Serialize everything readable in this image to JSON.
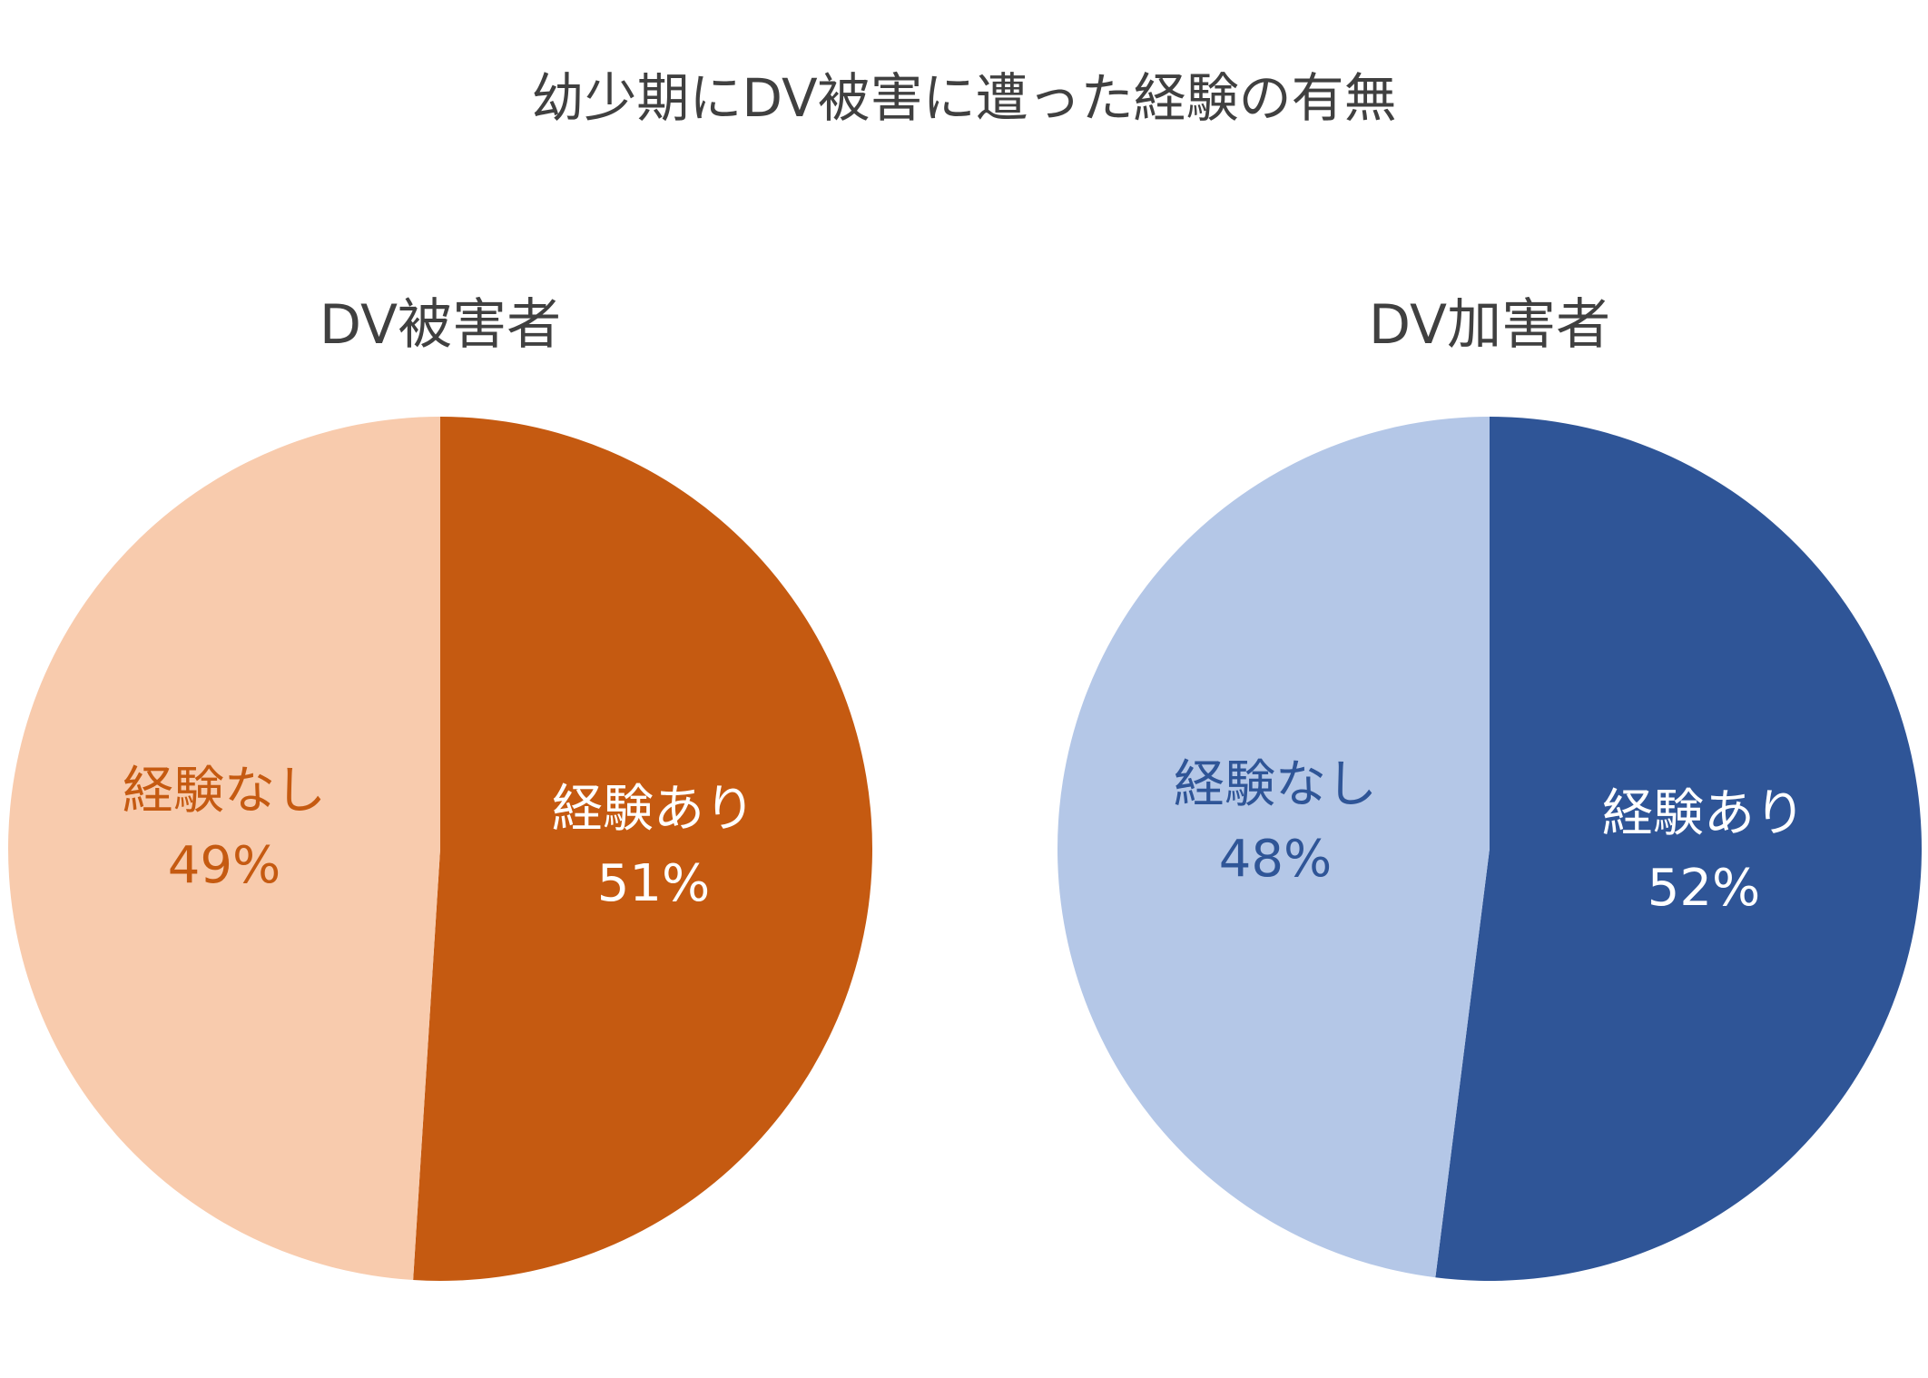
{
  "title": "幼少期にDV被害に遭った経験の有無",
  "colors": {
    "title_text": "#404040",
    "background": "#ffffff"
  },
  "chart_data": [
    {
      "type": "pie",
      "title": "DV被害者",
      "slices": [
        {
          "label": "経験あり",
          "value": 51,
          "value_label": "51%",
          "color": "#C55A11",
          "label_color": "#ffffff"
        },
        {
          "label": "経験なし",
          "value": 49,
          "value_label": "49%",
          "color": "#F8CBAD",
          "label_color": "#C55A11"
        }
      ]
    },
    {
      "type": "pie",
      "title": "DV加害者",
      "slices": [
        {
          "label": "経験あり",
          "value": 52,
          "value_label": "52%",
          "color": "#2F5597",
          "label_color": "#ffffff"
        },
        {
          "label": "経験なし",
          "value": 48,
          "value_label": "48%",
          "color": "#B4C7E7",
          "label_color": "#2F5597"
        }
      ]
    }
  ]
}
